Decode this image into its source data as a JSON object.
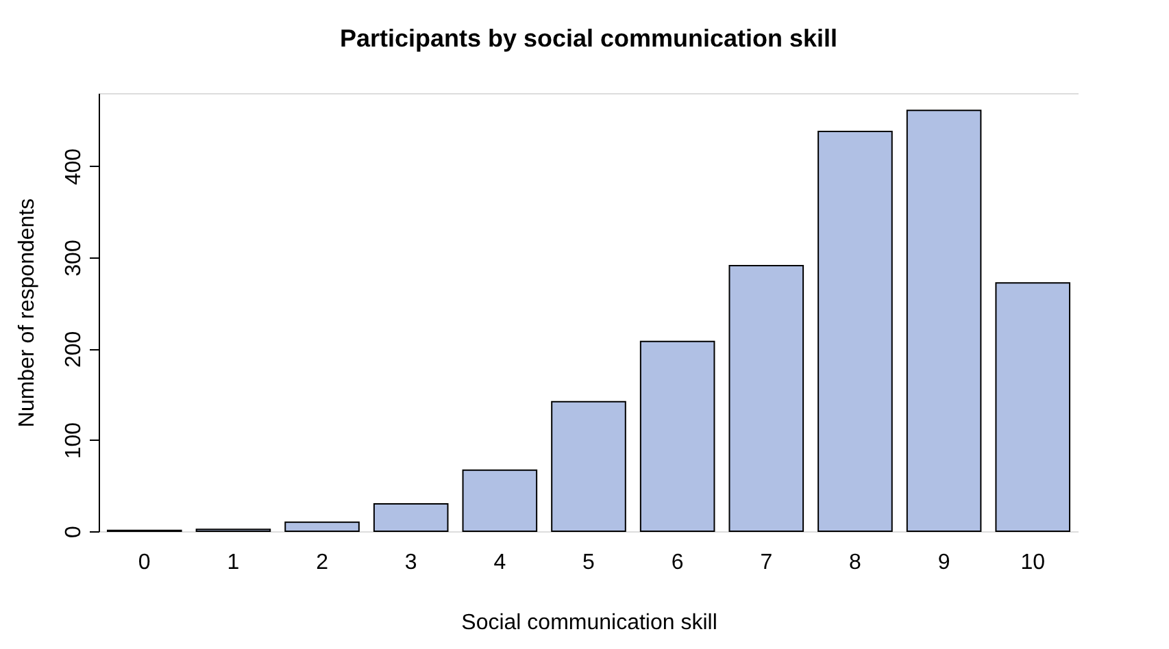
{
  "chart_data": {
    "type": "bar",
    "title": "Participants by social communication skill",
    "xlabel": "Social communication skill",
    "ylabel": "Number of respondents",
    "categories": [
      "0",
      "1",
      "2",
      "3",
      "4",
      "5",
      "6",
      "7",
      "8",
      "9",
      "10"
    ],
    "values": [
      1,
      2,
      10,
      30,
      67,
      142,
      208,
      291,
      438,
      461,
      272
    ],
    "color": "#b0c0e4",
    "ylim": [
      0,
      480
    ],
    "yticks": [
      0,
      100,
      200,
      300,
      400
    ],
    "grid": false
  }
}
